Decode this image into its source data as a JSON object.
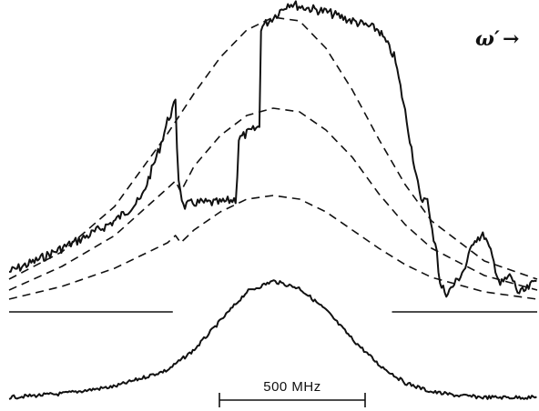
{
  "chart_data": {
    "type": "line",
    "title": "",
    "axis_label": "ω′",
    "axis_arrow": "→",
    "scale_bar_label": "500 MHz",
    "grid": false,
    "legend": "none",
    "series": [
      {
        "role": "upper-trace",
        "style": "solid",
        "x": [
          -1.0,
          -0.9,
          -0.8,
          -0.7,
          -0.6,
          -0.5,
          -0.43,
          -0.4,
          -0.37,
          -0.36,
          -0.34,
          -0.3,
          -0.2,
          -0.14,
          -0.13,
          -0.1,
          -0.05,
          -0.05,
          0.0,
          0.06,
          0.1,
          0.2,
          0.3,
          0.4,
          0.46,
          0.5,
          0.56,
          0.58,
          0.6,
          0.62,
          0.63,
          0.66,
          0.7,
          0.73,
          0.76,
          0.8,
          0.83,
          0.86,
          0.9,
          0.93,
          0.96,
          1.0
        ],
        "y": [
          0.22,
          0.28,
          0.35,
          0.42,
          0.5,
          0.62,
          0.9,
          1.05,
          1.15,
          0.75,
          0.58,
          0.6,
          0.6,
          0.62,
          0.95,
          0.98,
          1.02,
          1.56,
          1.62,
          1.7,
          1.68,
          1.65,
          1.6,
          1.55,
          1.4,
          1.1,
          0.6,
          0.65,
          0.45,
          0.35,
          0.15,
          0.1,
          0.18,
          0.25,
          0.4,
          0.42,
          0.3,
          0.15,
          0.2,
          0.1,
          0.12,
          0.18
        ]
      },
      {
        "role": "fit-outer",
        "style": "dashed",
        "x": [
          -1.0,
          -0.8,
          -0.6,
          -0.4,
          -0.3,
          -0.2,
          -0.1,
          0.0,
          0.1,
          0.2,
          0.3,
          0.4,
          0.5,
          0.6,
          0.8,
          1.0
        ],
        "y": [
          0.18,
          0.33,
          0.58,
          0.98,
          1.2,
          1.4,
          1.55,
          1.62,
          1.6,
          1.45,
          1.22,
          0.95,
          0.7,
          0.5,
          0.28,
          0.18
        ]
      },
      {
        "role": "fit-middle",
        "style": "dashed",
        "x": [
          -1.0,
          -0.8,
          -0.6,
          -0.4,
          -0.37,
          -0.35,
          -0.3,
          -0.2,
          -0.1,
          0.0,
          0.1,
          0.2,
          0.3,
          0.4,
          0.5,
          0.6,
          0.8,
          1.0
        ],
        "y": [
          0.12,
          0.25,
          0.42,
          0.68,
          0.72,
          0.66,
          0.8,
          0.97,
          1.08,
          1.12,
          1.1,
          1.0,
          0.85,
          0.65,
          0.48,
          0.35,
          0.2,
          0.12
        ]
      },
      {
        "role": "fit-inner",
        "style": "dashed",
        "x": [
          -1.0,
          -0.8,
          -0.6,
          -0.4,
          -0.37,
          -0.35,
          -0.3,
          -0.2,
          -0.1,
          0.0,
          0.1,
          0.2,
          0.3,
          0.4,
          0.5,
          0.6,
          0.8,
          1.0
        ],
        "y": [
          0.07,
          0.14,
          0.24,
          0.38,
          0.42,
          0.38,
          0.45,
          0.55,
          0.62,
          0.64,
          0.62,
          0.55,
          0.45,
          0.35,
          0.26,
          0.19,
          0.11,
          0.07
        ]
      },
      {
        "role": "lower-trace",
        "style": "solid",
        "x": [
          -1.0,
          -0.8,
          -0.6,
          -0.4,
          -0.3,
          -0.2,
          -0.1,
          0.0,
          0.1,
          0.2,
          0.3,
          0.4,
          0.5,
          0.6,
          0.7,
          0.8,
          0.9,
          1.0
        ],
        "y": [
          0.0,
          0.02,
          0.06,
          0.15,
          0.26,
          0.42,
          0.58,
          0.64,
          0.6,
          0.48,
          0.32,
          0.18,
          0.08,
          0.03,
          0.01,
          0.0,
          0.0,
          0.0
        ]
      }
    ],
    "baseline": {
      "x_segments": [
        [
          -1.0,
          -0.38
        ],
        [
          0.45,
          1.0
        ]
      ],
      "y": 0
    }
  }
}
